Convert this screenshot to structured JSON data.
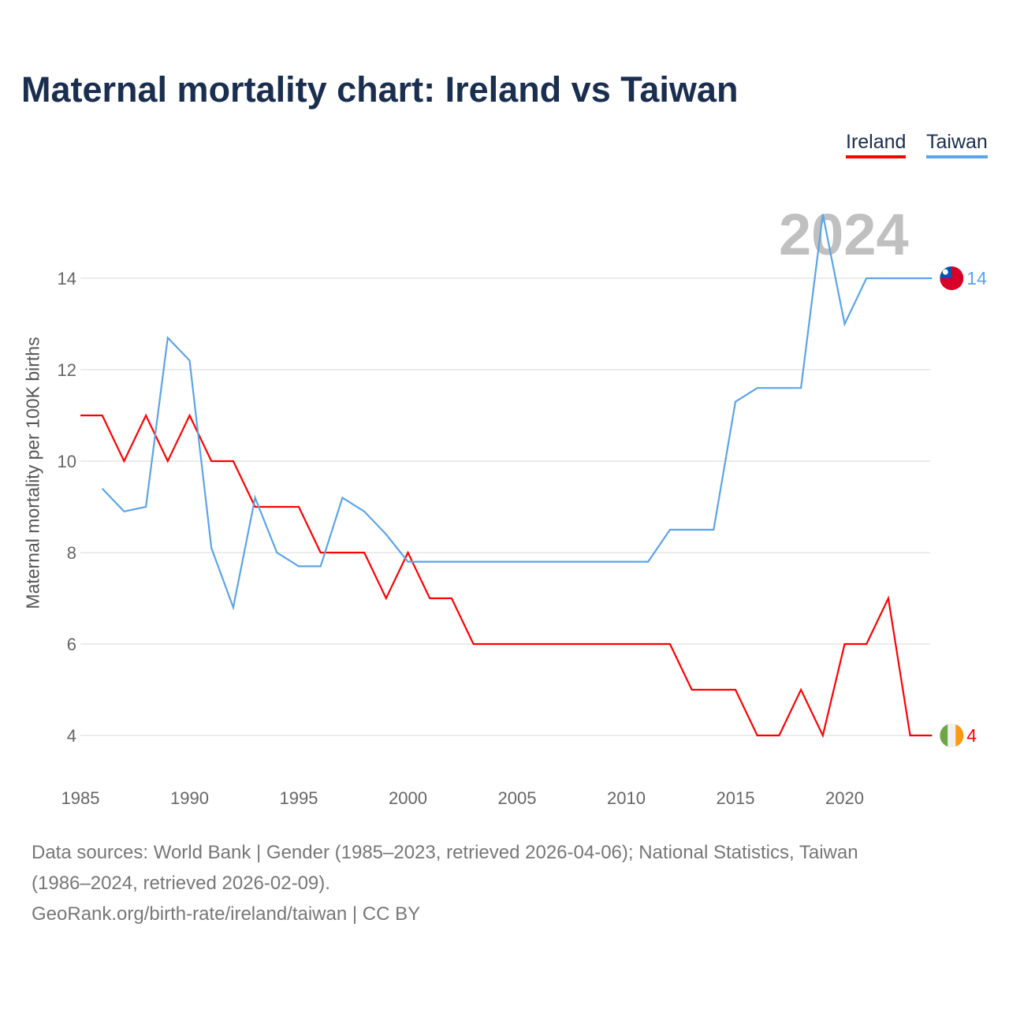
{
  "title": "Maternal mortality chart: Ireland vs Taiwan",
  "current_year": "2024",
  "legend": [
    {
      "label": "Ireland",
      "color": "#ff0000"
    },
    {
      "label": "Taiwan",
      "color": "#5ba4e8"
    }
  ],
  "chart_data": {
    "type": "line",
    "title": "Maternal mortality chart: Ireland vs Taiwan",
    "xlabel": "",
    "ylabel": "Maternal mortality per 100K births",
    "xlim": [
      1985,
      2024
    ],
    "ylim": [
      3,
      15.5
    ],
    "x_ticks": [
      "1985",
      "1990",
      "1995",
      "2000",
      "2005",
      "2010",
      "2015",
      "2020"
    ],
    "y_ticks": [
      "4",
      "6",
      "8",
      "10",
      "12",
      "14"
    ],
    "grid": true,
    "legend_position": "top-right",
    "series": [
      {
        "name": "Ireland",
        "color": "#ff0000",
        "end_label": "4",
        "flag": "ireland-flag",
        "x": [
          1985,
          1986,
          1987,
          1988,
          1989,
          1990,
          1991,
          1992,
          1993,
          1994,
          1995,
          1996,
          1997,
          1998,
          1999,
          2000,
          2001,
          2002,
          2003,
          2004,
          2005,
          2006,
          2007,
          2008,
          2009,
          2010,
          2011,
          2012,
          2013,
          2014,
          2015,
          2016,
          2017,
          2018,
          2019,
          2020,
          2021,
          2022,
          2023,
          2024
        ],
        "y": [
          11,
          11,
          10,
          11,
          10,
          11,
          10,
          10,
          9,
          9,
          9,
          8,
          8,
          8,
          7,
          8,
          7,
          7,
          6,
          6,
          6,
          6,
          6,
          6,
          6,
          6,
          6,
          6,
          5,
          5,
          5,
          4,
          4,
          5,
          4,
          6,
          6,
          7,
          4,
          4
        ]
      },
      {
        "name": "Taiwan",
        "color": "#5ba4e8",
        "end_label": "14",
        "flag": "taiwan-flag",
        "x": [
          1986,
          1987,
          1988,
          1989,
          1990,
          1991,
          1992,
          1993,
          1994,
          1995,
          1996,
          1997,
          1998,
          1999,
          2000,
          2001,
          2002,
          2003,
          2004,
          2005,
          2006,
          2007,
          2008,
          2009,
          2010,
          2011,
          2012,
          2013,
          2014,
          2015,
          2016,
          2017,
          2018,
          2019,
          2020,
          2021,
          2022,
          2023,
          2024
        ],
        "y": [
          9.4,
          8.9,
          9.0,
          12.7,
          12.2,
          8.1,
          6.8,
          9.2,
          8.0,
          7.7,
          7.7,
          9.2,
          8.9,
          8.4,
          7.8,
          7.8,
          7.8,
          7.8,
          7.8,
          7.8,
          7.8,
          7.8,
          7.8,
          7.8,
          7.8,
          7.8,
          8.5,
          8.5,
          8.5,
          11.3,
          11.6,
          11.6,
          11.6,
          15.4,
          13.0,
          14.0,
          14.0,
          14.0,
          14.0
        ]
      }
    ]
  },
  "footer": {
    "line1": "Data sources: World Bank | Gender (1985–2023, retrieved 2026-04-06); National Statistics, Taiwan",
    "line2": "(1986–2024, retrieved 2026-02-09).",
    "line3": "GeoRank.org/birth-rate/ireland/taiwan | CC BY"
  }
}
